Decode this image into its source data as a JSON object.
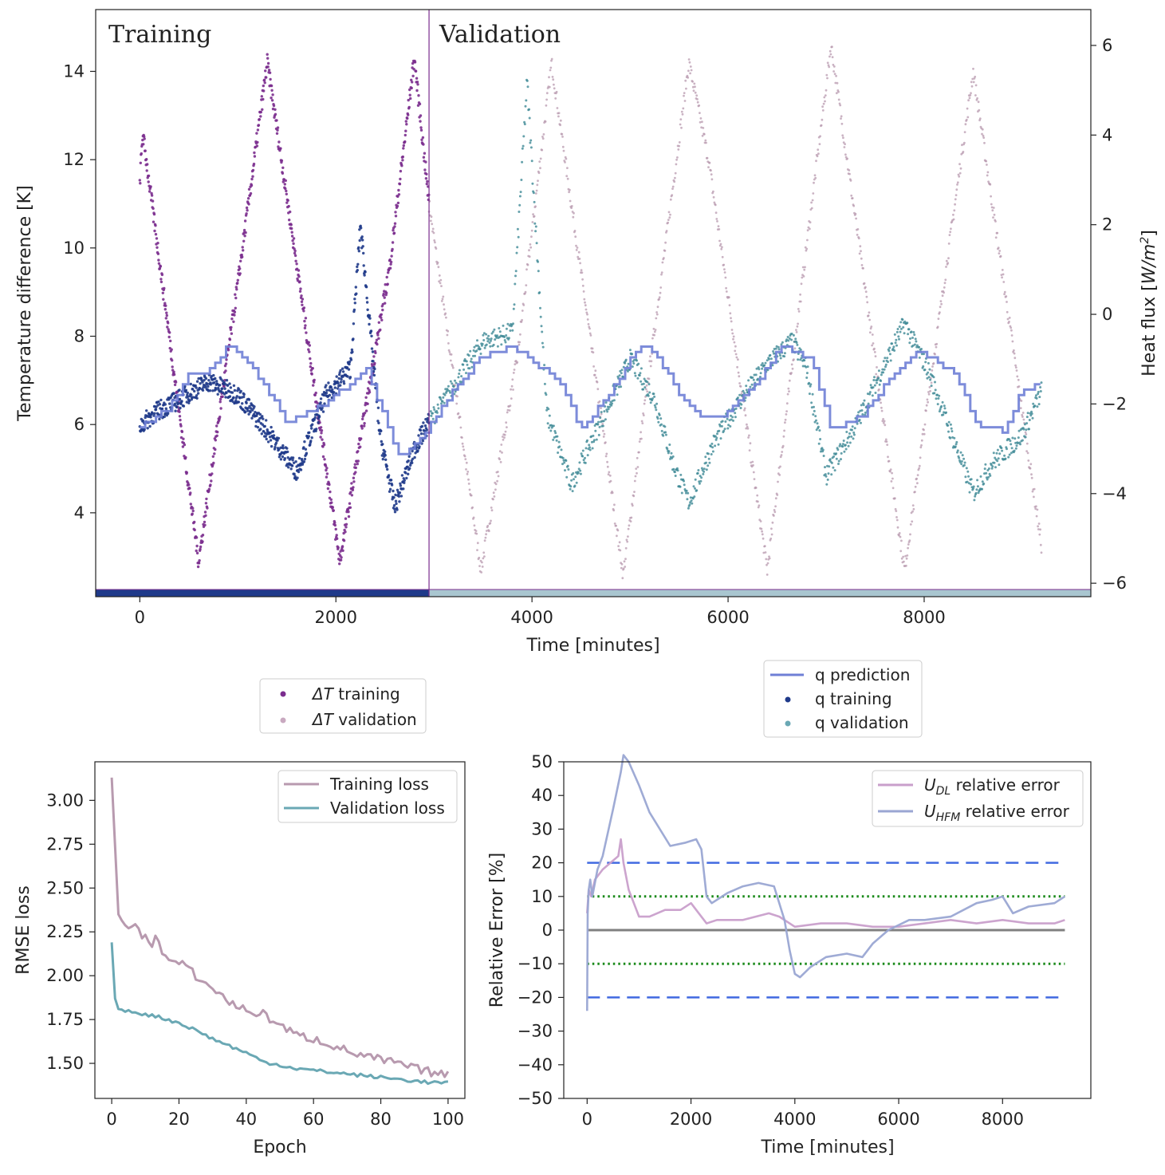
{
  "chart_data": [
    {
      "id": "main",
      "type": "scatter",
      "xlabel": "Time [minutes]",
      "ylabel": "Temperature difference [K]",
      "y2label_prefix": "Heat flux [",
      "y2label_unit": "W/m",
      "y2label_sup": "2",
      "y2label_suffix": "]",
      "xlim": [
        -450,
        9700
      ],
      "ylim": [
        2.1,
        15.4
      ],
      "y2lim": [
        -6.3,
        6.8
      ],
      "xticks": [
        0,
        2000,
        4000,
        6000,
        8000
      ],
      "xtick_labels": [
        "0",
        "2000",
        "4000",
        "6000",
        "8000"
      ],
      "yticks": [
        4,
        6,
        8,
        10,
        12,
        14
      ],
      "ytick_labels": [
        "4",
        "6",
        "8",
        "10",
        "12",
        "14"
      ],
      "y2ticks": [
        -6,
        -4,
        -2,
        0,
        2,
        4,
        6
      ],
      "y2tick_labels": [
        "−6",
        "−4",
        "−2",
        "0",
        "2",
        "4",
        "6"
      ],
      "split_time": 2950,
      "region_labels": {
        "training": "Training",
        "validation": "Validation"
      },
      "legend_left": [
        {
          "label_italic": "ΔT",
          "label_rest": " training",
          "color": "#7b2d8e"
        },
        {
          "label_italic": "ΔT",
          "label_rest": " validation",
          "color": "#c9a9c0"
        }
      ],
      "legend_right": [
        {
          "label": "q prediction",
          "color": "#6f7fd6",
          "marker": "line"
        },
        {
          "label": "q training",
          "color": "#1f3a8a",
          "marker": "dot"
        },
        {
          "label": "q validation",
          "color": "#6aa8b4",
          "marker": "dot"
        }
      ],
      "colors": {
        "dT_training": "#7b2d8e",
        "dT_validation": "#b89aaf",
        "q_prediction": "#6f7fd6",
        "q_training": "#1f3a8a",
        "q_validation": "#3f8a96",
        "bar_training": "#1f3a8a",
        "bar_validation": "#a9c6d0",
        "split_line": "#7b2d8e"
      },
      "series": [
        {
          "name": "dT training",
          "x": [
            0,
            30,
            600,
            1000,
            1300,
            2040,
            2550,
            2800,
            2950
          ],
          "y": [
            11.5,
            12.6,
            2.9,
            9.2,
            14.2,
            2.9,
            9.6,
            14.3,
            11.0
          ]
        },
        {
          "name": "dT validation",
          "x": [
            2950,
            3480,
            3850,
            4200,
            4930,
            5600,
            5800,
            6400,
            7050,
            7800,
            8500,
            9200
          ],
          "y": [
            11.0,
            2.7,
            7.5,
            14.2,
            2.6,
            14.2,
            12.0,
            2.7,
            14.6,
            2.7,
            14.0,
            3.2
          ]
        },
        {
          "name": "q training",
          "x": [
            0,
            150,
            400,
            700,
            1000,
            1300,
            1600,
            1900,
            2150,
            2250,
            2450,
            2600,
            2800,
            2950
          ],
          "y": [
            -2.5,
            -2.2,
            -1.9,
            -1.5,
            -1.8,
            -2.6,
            -3.5,
            -1.8,
            -1.2,
            2.0,
            -2.7,
            -4.3,
            -3.0,
            -2.4
          ]
        },
        {
          "name": "q validation",
          "x": [
            2950,
            3200,
            3500,
            3800,
            3950,
            4150,
            4400,
            4700,
            5000,
            5250,
            5450,
            5600,
            5850,
            6100,
            6400,
            6650,
            6800,
            7000,
            7300,
            7600,
            7800,
            8050,
            8300,
            8500,
            8700,
            9000,
            9200
          ],
          "y": [
            -2.4,
            -1.6,
            -0.6,
            -0.4,
            5.2,
            -2.2,
            -3.8,
            -2.4,
            -1.0,
            -1.9,
            -3.4,
            -4.2,
            -2.9,
            -2.0,
            -1.1,
            -0.6,
            -1.2,
            -3.6,
            -2.5,
            -1.1,
            -0.2,
            -1.3,
            -2.8,
            -4.0,
            -3.3,
            -2.7,
            -1.7
          ]
        },
        {
          "name": "q prediction",
          "x": [
            0,
            300,
            500,
            650,
            900,
            1150,
            1500,
            1800,
            2000,
            2300,
            2650,
            2950,
            3200,
            3450,
            3800,
            4050,
            4300,
            4500,
            4800,
            5100,
            5250,
            5500,
            5750,
            6000,
            6300,
            6550,
            6850,
            7050,
            7350,
            7650,
            7950,
            8300,
            8550,
            8800,
            9000,
            9200
          ],
          "y": [
            -2.5,
            -2.1,
            -1.3,
            -1.4,
            -0.7,
            -1.2,
            -2.4,
            -2.1,
            -1.8,
            -1.2,
            -3.2,
            -2.5,
            -1.7,
            -1.0,
            -0.7,
            -1.1,
            -1.6,
            -2.6,
            -1.7,
            -0.7,
            -0.8,
            -1.8,
            -2.3,
            -2.2,
            -1.5,
            -0.7,
            -1.0,
            -2.6,
            -2.3,
            -1.4,
            -0.8,
            -1.3,
            -2.5,
            -2.6,
            -1.7,
            -1.5
          ]
        }
      ]
    },
    {
      "id": "loss",
      "type": "line",
      "xlabel": "Epoch",
      "ylabel": "RMSE loss",
      "xlim": [
        -5,
        105
      ],
      "ylim": [
        1.3,
        3.22
      ],
      "xticks": [
        0,
        20,
        40,
        60,
        80,
        100
      ],
      "xtick_labels": [
        "0",
        "20",
        "40",
        "60",
        "80",
        "100"
      ],
      "yticks": [
        1.5,
        1.75,
        2.0,
        2.25,
        2.5,
        2.75,
        3.0
      ],
      "ytick_labels": [
        "1.50",
        "1.75",
        "2.00",
        "2.25",
        "2.50",
        "2.75",
        "3.00"
      ],
      "legend": [
        {
          "label": "Training loss",
          "color": "#b89aaf"
        },
        {
          "label": "Validation loss",
          "color": "#6aa8b4"
        }
      ],
      "series": [
        {
          "name": "Training loss",
          "x": [
            0,
            2,
            4,
            6,
            8,
            10,
            12,
            13,
            15,
            18,
            20,
            22,
            24,
            26,
            28,
            30,
            35,
            40,
            45,
            50,
            55,
            60,
            65,
            70,
            75,
            80,
            85,
            90,
            95,
            100
          ],
          "y": [
            3.13,
            2.35,
            2.28,
            2.3,
            2.25,
            2.22,
            2.18,
            2.25,
            2.12,
            2.08,
            2.05,
            2.07,
            2.02,
            1.98,
            1.95,
            1.93,
            1.85,
            1.8,
            1.78,
            1.72,
            1.66,
            1.64,
            1.61,
            1.57,
            1.54,
            1.52,
            1.5,
            1.47,
            1.45,
            1.43
          ]
        },
        {
          "name": "Validation loss",
          "x": [
            0,
            1,
            2,
            5,
            10,
            15,
            20,
            25,
            30,
            35,
            40,
            45,
            50,
            55,
            60,
            65,
            70,
            75,
            80,
            85,
            90,
            95,
            100
          ],
          "y": [
            2.19,
            1.87,
            1.81,
            1.8,
            1.78,
            1.76,
            1.73,
            1.69,
            1.64,
            1.6,
            1.56,
            1.51,
            1.49,
            1.47,
            1.46,
            1.45,
            1.44,
            1.43,
            1.42,
            1.41,
            1.4,
            1.39,
            1.39
          ]
        }
      ]
    },
    {
      "id": "error",
      "type": "line",
      "xlabel": "Time [minutes]",
      "ylabel": "Relative Error [%]",
      "xlim": [
        -450,
        9700
      ],
      "ylim": [
        -50,
        50
      ],
      "xticks": [
        0,
        2000,
        4000,
        6000,
        8000
      ],
      "xtick_labels": [
        "0",
        "2000",
        "4000",
        "6000",
        "8000"
      ],
      "yticks": [
        -50,
        -40,
        -30,
        -20,
        -10,
        0,
        10,
        20,
        30,
        40,
        50
      ],
      "ytick_labels": [
        "−50",
        "−40",
        "−30",
        "−20",
        "−10",
        "0",
        "10",
        "20",
        "30",
        "40",
        "50"
      ],
      "reference_lines": [
        {
          "y": 20,
          "style": "dashed",
          "color": "#4169e1"
        },
        {
          "y": -20,
          "style": "dashed",
          "color": "#4169e1"
        },
        {
          "y": 10,
          "style": "dotted",
          "color": "#1a8a1a"
        },
        {
          "y": -10,
          "style": "dotted",
          "color": "#1a8a1a"
        },
        {
          "y": 0,
          "style": "solid",
          "color": "#808080"
        }
      ],
      "legend": [
        {
          "sym": "U",
          "sub": "DL",
          "rest": " relative error",
          "color": "#c99fcb"
        },
        {
          "sym": "U",
          "sub": "HFM",
          "rest": " relative error",
          "color": "#9aa6d3"
        }
      ],
      "series": [
        {
          "name": "U_DL relative error",
          "x": [
            0,
            30,
            80,
            150,
            300,
            450,
            600,
            650,
            700,
            800,
            1000,
            1200,
            1500,
            1800,
            2000,
            2100,
            2300,
            2500,
            3000,
            3500,
            3700,
            4000,
            4500,
            5000,
            5500,
            6000,
            6500,
            7000,
            7500,
            8000,
            8500,
            9000,
            9200
          ],
          "y": [
            5,
            12,
            10,
            15,
            18,
            20,
            22,
            27,
            20,
            12,
            4,
            4,
            6,
            6,
            8,
            6,
            2,
            3,
            3,
            5,
            4,
            1,
            2,
            2,
            1,
            1,
            2,
            3,
            2,
            3,
            2,
            2,
            3
          ]
        },
        {
          "name": "U_HFM relative error",
          "x": [
            0,
            10,
            30,
            60,
            100,
            200,
            300,
            500,
            650,
            700,
            800,
            1000,
            1200,
            1600,
            1900,
            2100,
            2200,
            2300,
            2400,
            2700,
            3000,
            3300,
            3600,
            3800,
            3900,
            4000,
            4100,
            4300,
            4600,
            5000,
            5300,
            5500,
            5800,
            6200,
            6500,
            7000,
            7500,
            7800,
            8000,
            8200,
            8500,
            9000,
            9200
          ],
          "y": [
            -24,
            5,
            12,
            15,
            10,
            18,
            22,
            36,
            47,
            52,
            50,
            43,
            35,
            25,
            26,
            27,
            24,
            10,
            8,
            11,
            13,
            14,
            13,
            3,
            -6,
            -13,
            -14,
            -11,
            -8,
            -7,
            -8,
            -4,
            0,
            3,
            3,
            4,
            8,
            9,
            10,
            5,
            7,
            8,
            10
          ]
        }
      ]
    }
  ]
}
